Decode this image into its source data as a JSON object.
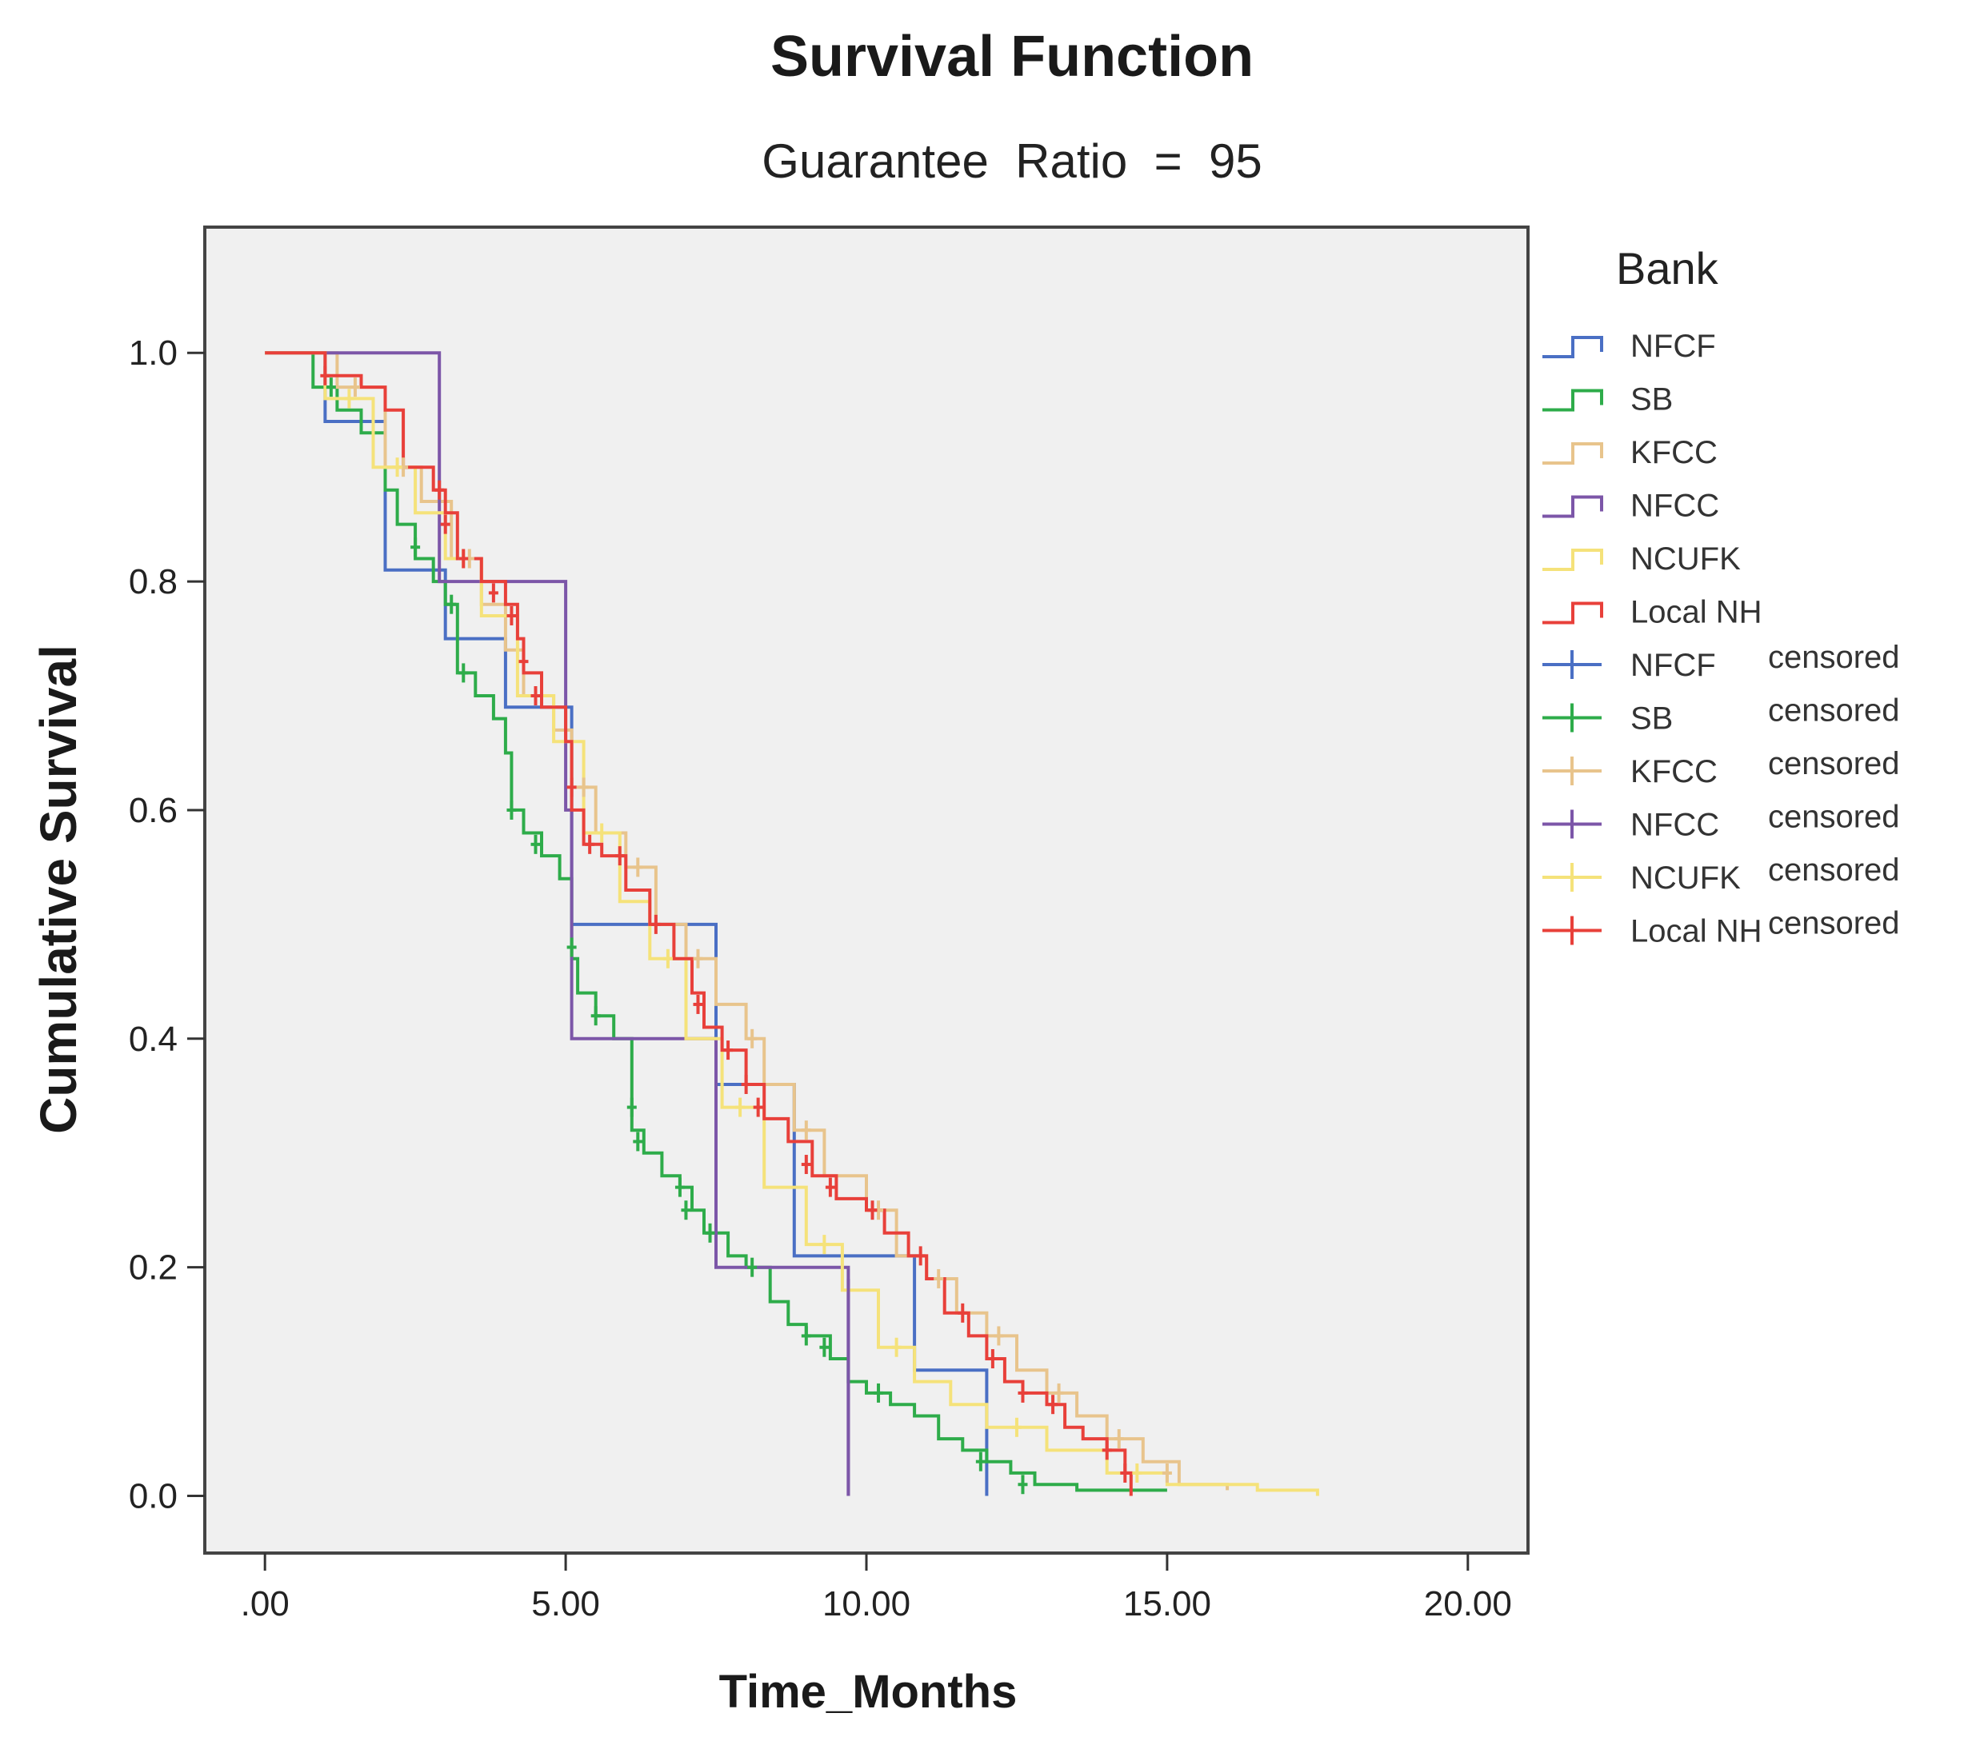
{
  "chart_data": {
    "type": "line",
    "title": "Survival Function",
    "subtitle": "Guarantee  Ratio  =  95",
    "xlabel": "Time_Months",
    "ylabel": "Cumulative Survival",
    "xlim": [
      -1,
      21
    ],
    "ylim": [
      -0.05,
      1.11
    ],
    "x_ticks": [
      0,
      5,
      10,
      15,
      20
    ],
    "x_tick_labels": [
      ".00",
      "5.00",
      "10.00",
      "15.00",
      "20.00"
    ],
    "y_ticks": [
      0.0,
      0.2,
      0.4,
      0.6,
      0.8,
      1.0
    ],
    "y_tick_labels": [
      "0.0",
      "0.2",
      "0.4",
      "0.6",
      "0.8",
      "1.0"
    ],
    "grid": false,
    "legend_title": "Bank",
    "legend_position": "right",
    "series": [
      {
        "name": "NFCF",
        "color": "#4a6fc4",
        "steps": [
          [
            0,
            1.0
          ],
          [
            1.0,
            0.94
          ],
          [
            2.0,
            0.81
          ],
          [
            3.0,
            0.75
          ],
          [
            4.0,
            0.69
          ],
          [
            5.1,
            0.5
          ],
          [
            6.0,
            0.5
          ],
          [
            7.5,
            0.36
          ],
          [
            8.8,
            0.21
          ],
          [
            10.8,
            0.11
          ],
          [
            12.0,
            0.0
          ]
        ],
        "censored": []
      },
      {
        "name": "SB",
        "color": "#2eac4a",
        "steps": [
          [
            0,
            1.0
          ],
          [
            0.8,
            0.97
          ],
          [
            1.2,
            0.95
          ],
          [
            1.6,
            0.93
          ],
          [
            2.0,
            0.88
          ],
          [
            2.2,
            0.85
          ],
          [
            2.5,
            0.82
          ],
          [
            2.8,
            0.8
          ],
          [
            3.0,
            0.78
          ],
          [
            3.2,
            0.72
          ],
          [
            3.5,
            0.7
          ],
          [
            3.8,
            0.68
          ],
          [
            4.0,
            0.65
          ],
          [
            4.1,
            0.6
          ],
          [
            4.3,
            0.58
          ],
          [
            4.6,
            0.56
          ],
          [
            4.9,
            0.54
          ],
          [
            5.1,
            0.47
          ],
          [
            5.2,
            0.44
          ],
          [
            5.5,
            0.42
          ],
          [
            5.8,
            0.4
          ],
          [
            6.1,
            0.32
          ],
          [
            6.3,
            0.3
          ],
          [
            6.6,
            0.28
          ],
          [
            6.9,
            0.27
          ],
          [
            7.1,
            0.25
          ],
          [
            7.3,
            0.23
          ],
          [
            7.7,
            0.21
          ],
          [
            8.0,
            0.2
          ],
          [
            8.4,
            0.17
          ],
          [
            8.7,
            0.15
          ],
          [
            9.0,
            0.14
          ],
          [
            9.4,
            0.12
          ],
          [
            9.7,
            0.1
          ],
          [
            10.0,
            0.09
          ],
          [
            10.4,
            0.08
          ],
          [
            10.8,
            0.07
          ],
          [
            11.2,
            0.05
          ],
          [
            11.6,
            0.04
          ],
          [
            12.0,
            0.03
          ],
          [
            12.4,
            0.02
          ],
          [
            12.8,
            0.01
          ],
          [
            13.5,
            0.005
          ],
          [
            15.0,
            0.005
          ]
        ],
        "censored": [
          [
            1.1,
            0.97
          ],
          [
            2.5,
            0.83
          ],
          [
            3.1,
            0.78
          ],
          [
            3.3,
            0.72
          ],
          [
            4.1,
            0.6
          ],
          [
            4.5,
            0.57
          ],
          [
            5.1,
            0.48
          ],
          [
            5.5,
            0.42
          ],
          [
            6.1,
            0.34
          ],
          [
            6.2,
            0.31
          ],
          [
            6.9,
            0.27
          ],
          [
            7.0,
            0.25
          ],
          [
            7.4,
            0.23
          ],
          [
            8.1,
            0.2
          ],
          [
            9.0,
            0.14
          ],
          [
            9.3,
            0.13
          ],
          [
            10.2,
            0.09
          ],
          [
            11.9,
            0.03
          ],
          [
            12.6,
            0.01
          ]
        ]
      },
      {
        "name": "KFCC",
        "color": "#e8c48c",
        "steps": [
          [
            0,
            1.0
          ],
          [
            1.2,
            0.97
          ],
          [
            2.0,
            0.9
          ],
          [
            2.6,
            0.87
          ],
          [
            3.1,
            0.82
          ],
          [
            3.6,
            0.78
          ],
          [
            4.0,
            0.74
          ],
          [
            4.3,
            0.7
          ],
          [
            4.8,
            0.67
          ],
          [
            5.1,
            0.62
          ],
          [
            5.5,
            0.58
          ],
          [
            6.0,
            0.55
          ],
          [
            6.5,
            0.5
          ],
          [
            7.0,
            0.47
          ],
          [
            7.5,
            0.43
          ],
          [
            8.0,
            0.4
          ],
          [
            8.3,
            0.36
          ],
          [
            8.8,
            0.32
          ],
          [
            9.3,
            0.28
          ],
          [
            10.0,
            0.25
          ],
          [
            10.5,
            0.21
          ],
          [
            11.0,
            0.19
          ],
          [
            11.5,
            0.16
          ],
          [
            12.0,
            0.14
          ],
          [
            12.5,
            0.11
          ],
          [
            13.0,
            0.09
          ],
          [
            13.5,
            0.07
          ],
          [
            14.0,
            0.05
          ],
          [
            14.6,
            0.03
          ],
          [
            15.2,
            0.01
          ],
          [
            16.0,
            0.005
          ]
        ],
        "censored": [
          [
            1.5,
            0.97
          ],
          [
            2.3,
            0.9
          ],
          [
            3.4,
            0.82
          ],
          [
            4.5,
            0.7
          ],
          [
            5.3,
            0.62
          ],
          [
            6.2,
            0.55
          ],
          [
            7.2,
            0.47
          ],
          [
            8.1,
            0.4
          ],
          [
            9.0,
            0.32
          ],
          [
            10.2,
            0.25
          ],
          [
            11.2,
            0.19
          ],
          [
            12.2,
            0.14
          ],
          [
            13.2,
            0.09
          ],
          [
            14.2,
            0.05
          ],
          [
            15.0,
            0.02
          ]
        ]
      },
      {
        "name": "NFCC",
        "color": "#7c56a8",
        "steps": [
          [
            0,
            1.0
          ],
          [
            2.9,
            0.8
          ],
          [
            5.0,
            0.6
          ],
          [
            5.1,
            0.4
          ],
          [
            7.5,
            0.2
          ],
          [
            9.7,
            0.0
          ]
        ],
        "censored": [
          [
            9.7,
            0.19
          ]
        ]
      },
      {
        "name": "NCUFK",
        "color": "#f5e27a",
        "steps": [
          [
            0,
            1.0
          ],
          [
            1.0,
            0.96
          ],
          [
            1.8,
            0.9
          ],
          [
            2.5,
            0.86
          ],
          [
            3.0,
            0.82
          ],
          [
            3.6,
            0.77
          ],
          [
            4.2,
            0.7
          ],
          [
            4.8,
            0.66
          ],
          [
            5.3,
            0.58
          ],
          [
            5.9,
            0.52
          ],
          [
            6.4,
            0.47
          ],
          [
            7.0,
            0.4
          ],
          [
            7.6,
            0.34
          ],
          [
            8.3,
            0.27
          ],
          [
            9.0,
            0.22
          ],
          [
            9.6,
            0.18
          ],
          [
            10.2,
            0.13
          ],
          [
            10.8,
            0.1
          ],
          [
            11.4,
            0.08
          ],
          [
            12.0,
            0.06
          ],
          [
            13.0,
            0.04
          ],
          [
            14.0,
            0.02
          ],
          [
            15.0,
            0.01
          ],
          [
            16.5,
            0.005
          ],
          [
            17.5,
            0.0
          ]
        ],
        "censored": [
          [
            1.4,
            0.96
          ],
          [
            2.2,
            0.9
          ],
          [
            3.3,
            0.82
          ],
          [
            4.5,
            0.7
          ],
          [
            5.6,
            0.58
          ],
          [
            6.7,
            0.47
          ],
          [
            7.9,
            0.34
          ],
          [
            9.3,
            0.22
          ],
          [
            10.5,
            0.13
          ],
          [
            12.5,
            0.06
          ],
          [
            14.5,
            0.02
          ]
        ]
      },
      {
        "name": "Local NH",
        "color": "#e8403a",
        "steps": [
          [
            0,
            1.0
          ],
          [
            1.0,
            0.98
          ],
          [
            1.6,
            0.97
          ],
          [
            2.0,
            0.95
          ],
          [
            2.3,
            0.9
          ],
          [
            2.8,
            0.88
          ],
          [
            3.0,
            0.86
          ],
          [
            3.2,
            0.82
          ],
          [
            3.6,
            0.8
          ],
          [
            4.0,
            0.78
          ],
          [
            4.2,
            0.75
          ],
          [
            4.3,
            0.72
          ],
          [
            4.6,
            0.69
          ],
          [
            5.0,
            0.66
          ],
          [
            5.1,
            0.6
          ],
          [
            5.3,
            0.57
          ],
          [
            5.6,
            0.56
          ],
          [
            6.0,
            0.53
          ],
          [
            6.4,
            0.5
          ],
          [
            6.8,
            0.47
          ],
          [
            7.1,
            0.44
          ],
          [
            7.3,
            0.41
          ],
          [
            7.6,
            0.39
          ],
          [
            8.0,
            0.36
          ],
          [
            8.3,
            0.33
          ],
          [
            8.7,
            0.31
          ],
          [
            9.1,
            0.28
          ],
          [
            9.5,
            0.26
          ],
          [
            10.0,
            0.25
          ],
          [
            10.3,
            0.23
          ],
          [
            10.7,
            0.21
          ],
          [
            11.0,
            0.19
          ],
          [
            11.3,
            0.16
          ],
          [
            11.7,
            0.14
          ],
          [
            12.0,
            0.12
          ],
          [
            12.3,
            0.1
          ],
          [
            12.6,
            0.09
          ],
          [
            13.0,
            0.08
          ],
          [
            13.3,
            0.06
          ],
          [
            13.6,
            0.05
          ],
          [
            14.0,
            0.04
          ],
          [
            14.3,
            0.02
          ],
          [
            14.4,
            0.0
          ]
        ],
        "censored": [
          [
            1.0,
            0.98
          ],
          [
            2.9,
            0.88
          ],
          [
            3.0,
            0.85
          ],
          [
            3.3,
            0.82
          ],
          [
            3.8,
            0.79
          ],
          [
            4.1,
            0.77
          ],
          [
            4.3,
            0.73
          ],
          [
            4.5,
            0.7
          ],
          [
            5.1,
            0.62
          ],
          [
            5.4,
            0.57
          ],
          [
            5.9,
            0.56
          ],
          [
            6.5,
            0.5
          ],
          [
            7.2,
            0.43
          ],
          [
            7.7,
            0.39
          ],
          [
            8.0,
            0.36
          ],
          [
            8.2,
            0.34
          ],
          [
            9.0,
            0.29
          ],
          [
            9.4,
            0.27
          ],
          [
            10.1,
            0.25
          ],
          [
            10.9,
            0.21
          ],
          [
            11.6,
            0.16
          ],
          [
            12.1,
            0.12
          ],
          [
            12.6,
            0.09
          ],
          [
            13.1,
            0.08
          ],
          [
            14.0,
            0.04
          ],
          [
            14.3,
            0.02
          ]
        ]
      }
    ],
    "legend": [
      {
        "label": "NFCF",
        "suffix": "",
        "marker": "step",
        "color": "#4a6fc4"
      },
      {
        "label": "SB",
        "suffix": "",
        "marker": "step",
        "color": "#2eac4a"
      },
      {
        "label": "KFCC",
        "suffix": "",
        "marker": "step",
        "color": "#e8c48c"
      },
      {
        "label": "NFCC",
        "suffix": "",
        "marker": "step",
        "color": "#7c56a8"
      },
      {
        "label": "NCUFK",
        "suffix": "",
        "marker": "step",
        "color": "#f5e27a"
      },
      {
        "label": "Local  NH",
        "suffix": "",
        "marker": "step",
        "color": "#e8403a"
      },
      {
        "label": "NFCF",
        "suffix": "censored",
        "marker": "plus",
        "color": "#4a6fc4"
      },
      {
        "label": "SB",
        "suffix": "censored",
        "marker": "plus",
        "color": "#2eac4a"
      },
      {
        "label": "KFCC",
        "suffix": "censored",
        "marker": "plus",
        "color": "#e8c48c"
      },
      {
        "label": "NFCC",
        "suffix": "censored",
        "marker": "plus",
        "color": "#7c56a8"
      },
      {
        "label": "NCUFK",
        "suffix": "censored",
        "marker": "plus",
        "color": "#f5e27a"
      },
      {
        "label": "Local  NH",
        "suffix": "censored",
        "marker": "plus",
        "color": "#e8403a"
      }
    ]
  }
}
